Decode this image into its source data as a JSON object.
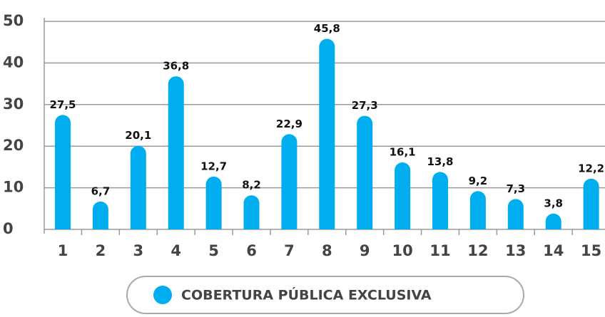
{
  "chart_data": {
    "type": "bar",
    "categories": [
      "1",
      "2",
      "3",
      "4",
      "5",
      "6",
      "7",
      "8",
      "9",
      "10",
      "11",
      "12",
      "13",
      "14",
      "15"
    ],
    "series": [
      {
        "name": "COBERTURA PÚBLICA EXCLUSIVA",
        "color": "#00aeef",
        "values": [
          27.5,
          6.7,
          20.1,
          36.8,
          12.7,
          8.2,
          22.9,
          45.8,
          27.3,
          16.1,
          13.8,
          9.2,
          7.3,
          3.8,
          12.2
        ],
        "value_labels": [
          "27,5",
          "6,7",
          "20,1",
          "36,8",
          "12,7",
          "8,2",
          "22,9",
          "45,8",
          "27,3",
          "16,1",
          "13,8",
          "9,2",
          "7,3",
          "3,8",
          "12,2"
        ]
      }
    ],
    "ylim": [
      0,
      50
    ],
    "yticks": [
      0,
      10,
      20,
      30,
      40,
      50
    ],
    "grid": true,
    "legend": "bottom"
  }
}
